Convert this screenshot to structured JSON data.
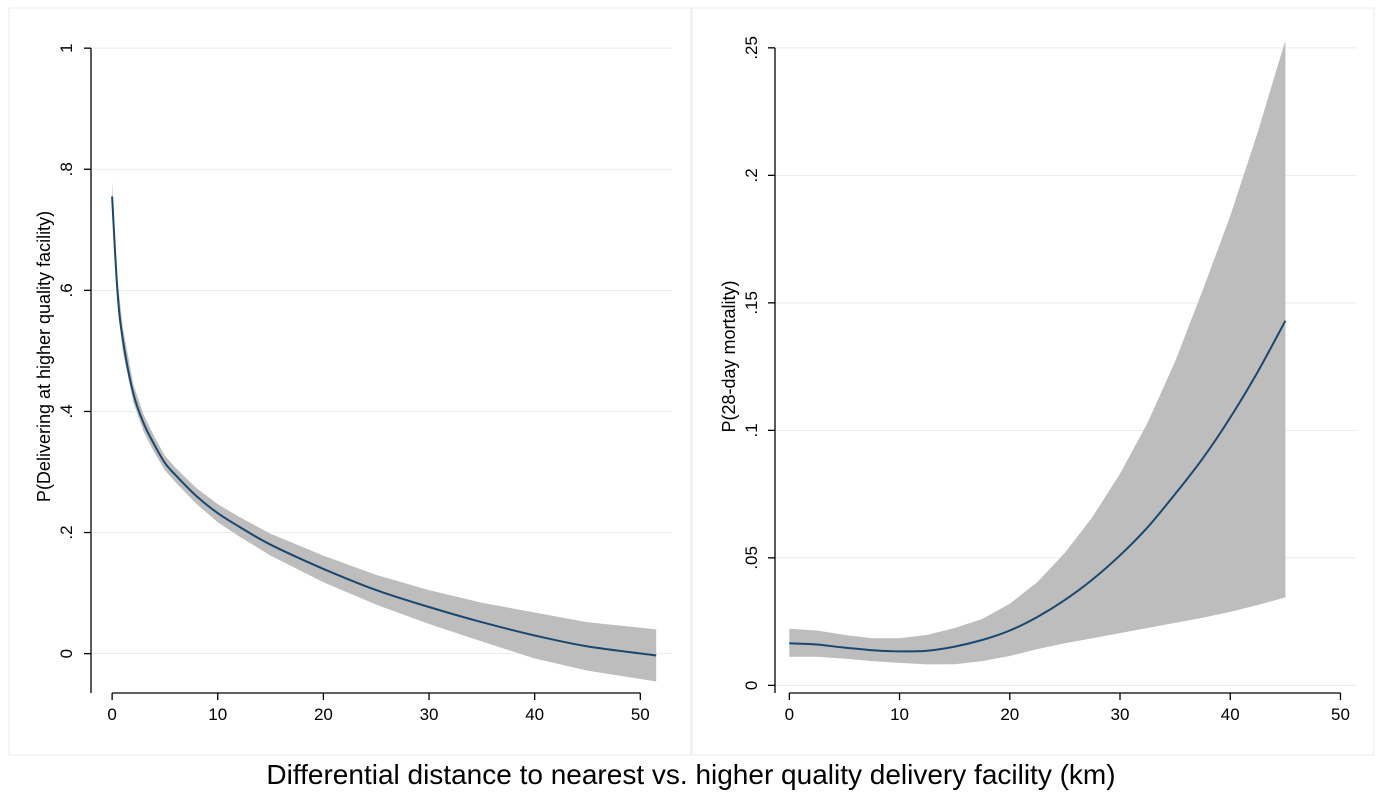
{
  "figure": {
    "xlabel_shared": "Differential distance to nearest vs. higher quality delivery facility (km)"
  },
  "chart_data": [
    {
      "type": "line",
      "title": "",
      "xlabel": "",
      "ylabel": "P(Delivering at higher quality facility)",
      "xlim": [
        -2,
        53
      ],
      "ylim": [
        -0.065,
        1.03
      ],
      "xticks": [
        0,
        10,
        20,
        30,
        40,
        50
      ],
      "xtick_labels": [
        "0",
        "10",
        "20",
        "30",
        "40",
        "50"
      ],
      "yticks": [
        0,
        0.2,
        0.4,
        0.6,
        0.8,
        1
      ],
      "ytick_labels": [
        "0",
        ".2",
        ".4",
        ".6",
        ".8",
        "1"
      ],
      "grid": true,
      "series": [
        {
          "x": [
            0,
            0.5,
            1,
            2,
            3,
            4,
            5,
            6,
            8,
            10,
            12,
            15,
            20,
            25,
            30,
            35,
            40,
            45,
            51.5
          ],
          "values": [
            0.755,
            0.6,
            0.52,
            0.43,
            0.38,
            0.345,
            0.315,
            0.295,
            0.26,
            0.232,
            0.21,
            0.18,
            0.14,
            0.105,
            0.077,
            0.052,
            0.03,
            0.012,
            -0.003
          ],
          "lower": [
            0.73,
            0.58,
            0.5,
            0.415,
            0.366,
            0.332,
            0.303,
            0.283,
            0.247,
            0.217,
            0.194,
            0.162,
            0.118,
            0.081,
            0.049,
            0.02,
            -0.008,
            -0.028,
            -0.046
          ],
          "upper": [
            0.78,
            0.62,
            0.54,
            0.445,
            0.394,
            0.358,
            0.327,
            0.307,
            0.273,
            0.247,
            0.226,
            0.198,
            0.162,
            0.13,
            0.105,
            0.084,
            0.068,
            0.052,
            0.04
          ]
        }
      ]
    },
    {
      "type": "line",
      "title": "",
      "xlabel": "",
      "ylabel": "P(28-day mortality)",
      "xlim": [
        -1.3,
        51.5
      ],
      "ylim": [
        -0.003,
        0.257
      ],
      "xticks": [
        0,
        10,
        20,
        30,
        40,
        50
      ],
      "xtick_labels": [
        "0",
        "10",
        "20",
        "30",
        "40",
        "50"
      ],
      "yticks": [
        0,
        0.05,
        0.1,
        0.15,
        0.2,
        0.25
      ],
      "ytick_labels": [
        "0",
        ".05",
        ".1",
        ".15",
        ".2",
        ".25"
      ],
      "grid": true,
      "series": [
        {
          "x": [
            0,
            2.5,
            5,
            7.5,
            10,
            12.5,
            15,
            17.5,
            20,
            22.5,
            25,
            27.5,
            30,
            32.5,
            35,
            37.5,
            40,
            42.5,
            45
          ],
          "values": [
            0.0165,
            0.016,
            0.0148,
            0.0138,
            0.0133,
            0.0136,
            0.0152,
            0.0178,
            0.0215,
            0.0268,
            0.0335,
            0.0415,
            0.051,
            0.062,
            0.075,
            0.089,
            0.105,
            0.123,
            0.143
          ],
          "lower": [
            0.0112,
            0.0112,
            0.0105,
            0.0095,
            0.0088,
            0.0082,
            0.0083,
            0.0095,
            0.0115,
            0.0142,
            0.0165,
            0.0185,
            0.0205,
            0.0225,
            0.0245,
            0.0265,
            0.0288,
            0.0315,
            0.0345
          ],
          "upper": [
            0.0222,
            0.0215,
            0.0198,
            0.0185,
            0.0185,
            0.0198,
            0.0225,
            0.026,
            0.032,
            0.0405,
            0.052,
            0.066,
            0.083,
            0.103,
            0.127,
            0.155,
            0.184,
            0.217,
            0.253
          ]
        }
      ]
    }
  ]
}
